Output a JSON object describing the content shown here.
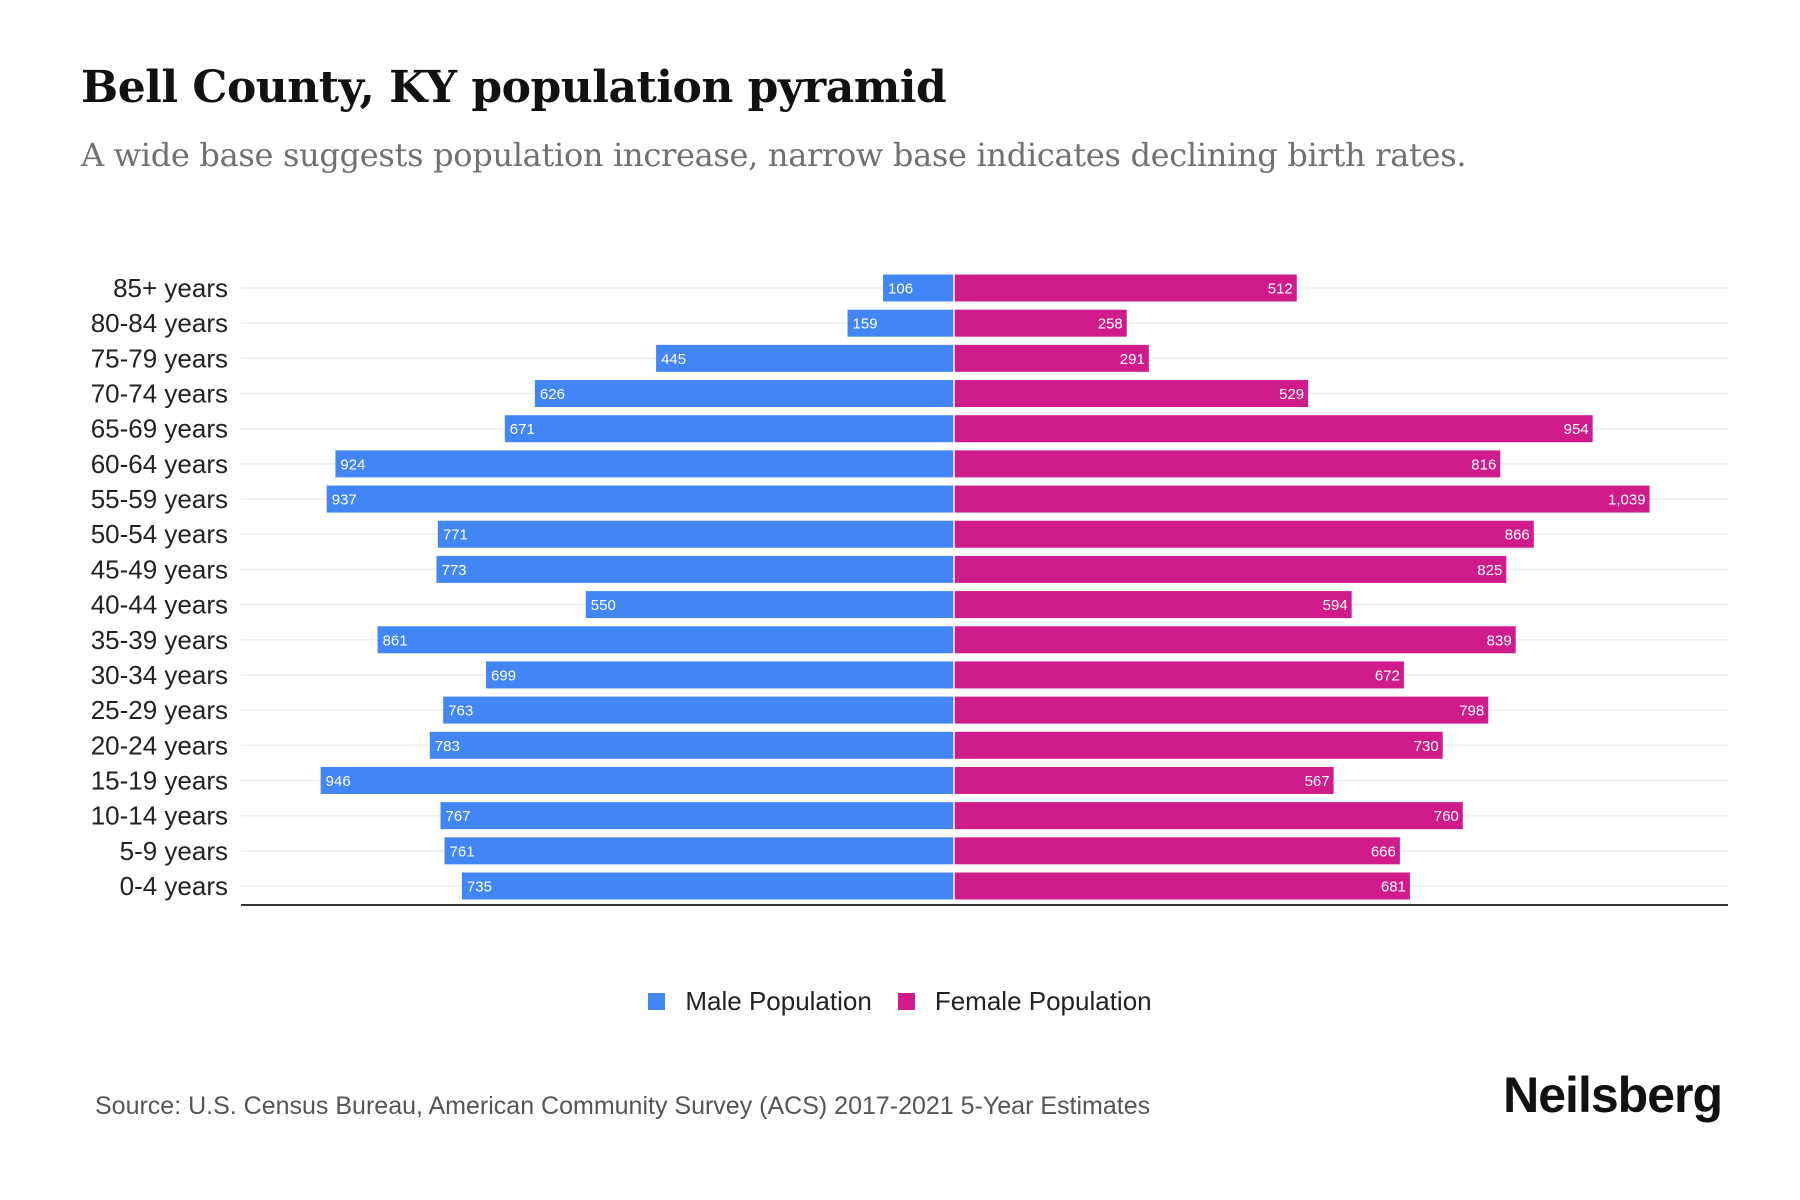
{
  "header": {
    "title": "Bell County, KY population pyramid",
    "subtitle": "A wide base suggests population increase, narrow base indicates declining birth rates."
  },
  "footer": {
    "source": "Source: U.S. Census Bureau, American Community Survey (ACS) 2017-2021 5-Year Estimates",
    "brand": "Neilsberg"
  },
  "colors": {
    "male": "#4285f4",
    "female": "#d01c8b",
    "grid": "#eeeeee",
    "axis": "#333333"
  },
  "chart_data": {
    "type": "bar",
    "orientation": "horizontal-diverging",
    "title": "Bell County, KY population pyramid",
    "subtitle": "A wide base suggests population increase, narrow base indicates declining birth rates.",
    "xlabel": "",
    "ylabel": "",
    "xlim": [
      -1065,
      1065
    ],
    "grid": true,
    "legend_position": "bottom-center",
    "categories": [
      "85+ years",
      "80-84 years",
      "75-79 years",
      "70-74 years",
      "65-69 years",
      "60-64 years",
      "55-59 years",
      "50-54 years",
      "45-49 years",
      "40-44 years",
      "35-39 years",
      "30-34 years",
      "25-29 years",
      "20-24 years",
      "15-19 years",
      "10-14 years",
      "5-9 years",
      "0-4 years"
    ],
    "series": [
      {
        "name": "Male Population",
        "side": "left",
        "values": [
          106,
          159,
          445,
          626,
          671,
          924,
          937,
          771,
          773,
          550,
          861,
          699,
          763,
          783,
          946,
          767,
          761,
          735
        ],
        "labels": [
          "106",
          "159",
          "445",
          "626",
          "671",
          "924",
          "937",
          "771",
          "773",
          "550",
          "861",
          "699",
          "763",
          "783",
          "946",
          "767",
          "761",
          "735"
        ]
      },
      {
        "name": "Female Population",
        "side": "right",
        "values": [
          512,
          258,
          291,
          529,
          954,
          816,
          1039,
          866,
          825,
          594,
          839,
          672,
          798,
          730,
          567,
          760,
          666,
          681
        ],
        "labels": [
          "512",
          "258",
          "291",
          "529",
          "954",
          "816",
          "1,039",
          "866",
          "825",
          "594",
          "839",
          "672",
          "798",
          "730",
          "567",
          "760",
          "666",
          "681"
        ]
      }
    ]
  }
}
